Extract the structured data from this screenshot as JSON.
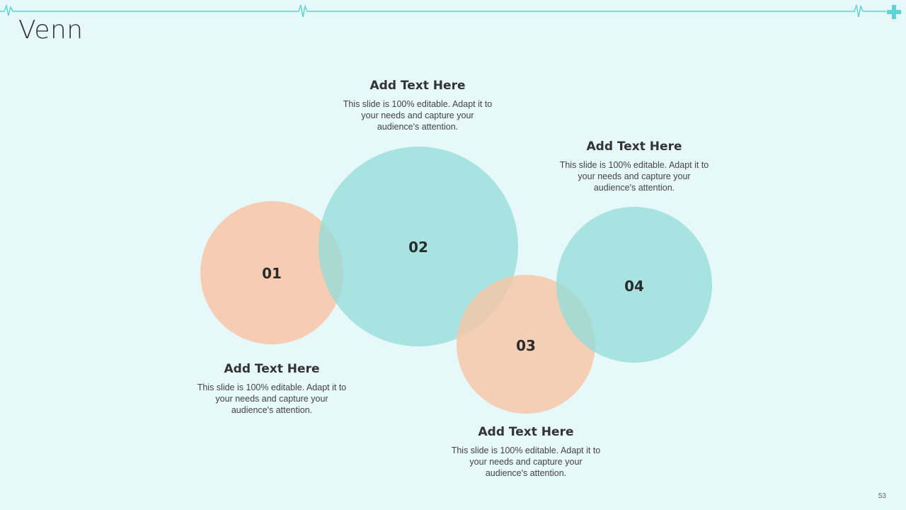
{
  "slide": {
    "title": "Venn",
    "page_number": "53"
  },
  "colors": {
    "background": "#e6f8f9",
    "teal": "#94dcda",
    "peach": "#f8c6a6",
    "accent_line": "#5fd3d3"
  },
  "circles": [
    {
      "label": "01",
      "color": "peach"
    },
    {
      "label": "02",
      "color": "teal"
    },
    {
      "label": "03",
      "color": "peach"
    },
    {
      "label": "04",
      "color": "teal"
    }
  ],
  "text_blocks": [
    {
      "heading": "Add Text Here",
      "body": "This slide is 100% editable. Adapt it to your needs and capture your audience's attention."
    },
    {
      "heading": "Add Text Here",
      "body": "This slide is 100% editable. Adapt it to your needs and capture your audience's attention."
    },
    {
      "heading": "Add Text Here",
      "body": "This slide is 100% editable. Adapt it to your needs and capture your audience's attention."
    },
    {
      "heading": "Add Text Here",
      "body": "This slide is 100% editable. Adapt it to your needs and capture your audience's attention."
    }
  ]
}
